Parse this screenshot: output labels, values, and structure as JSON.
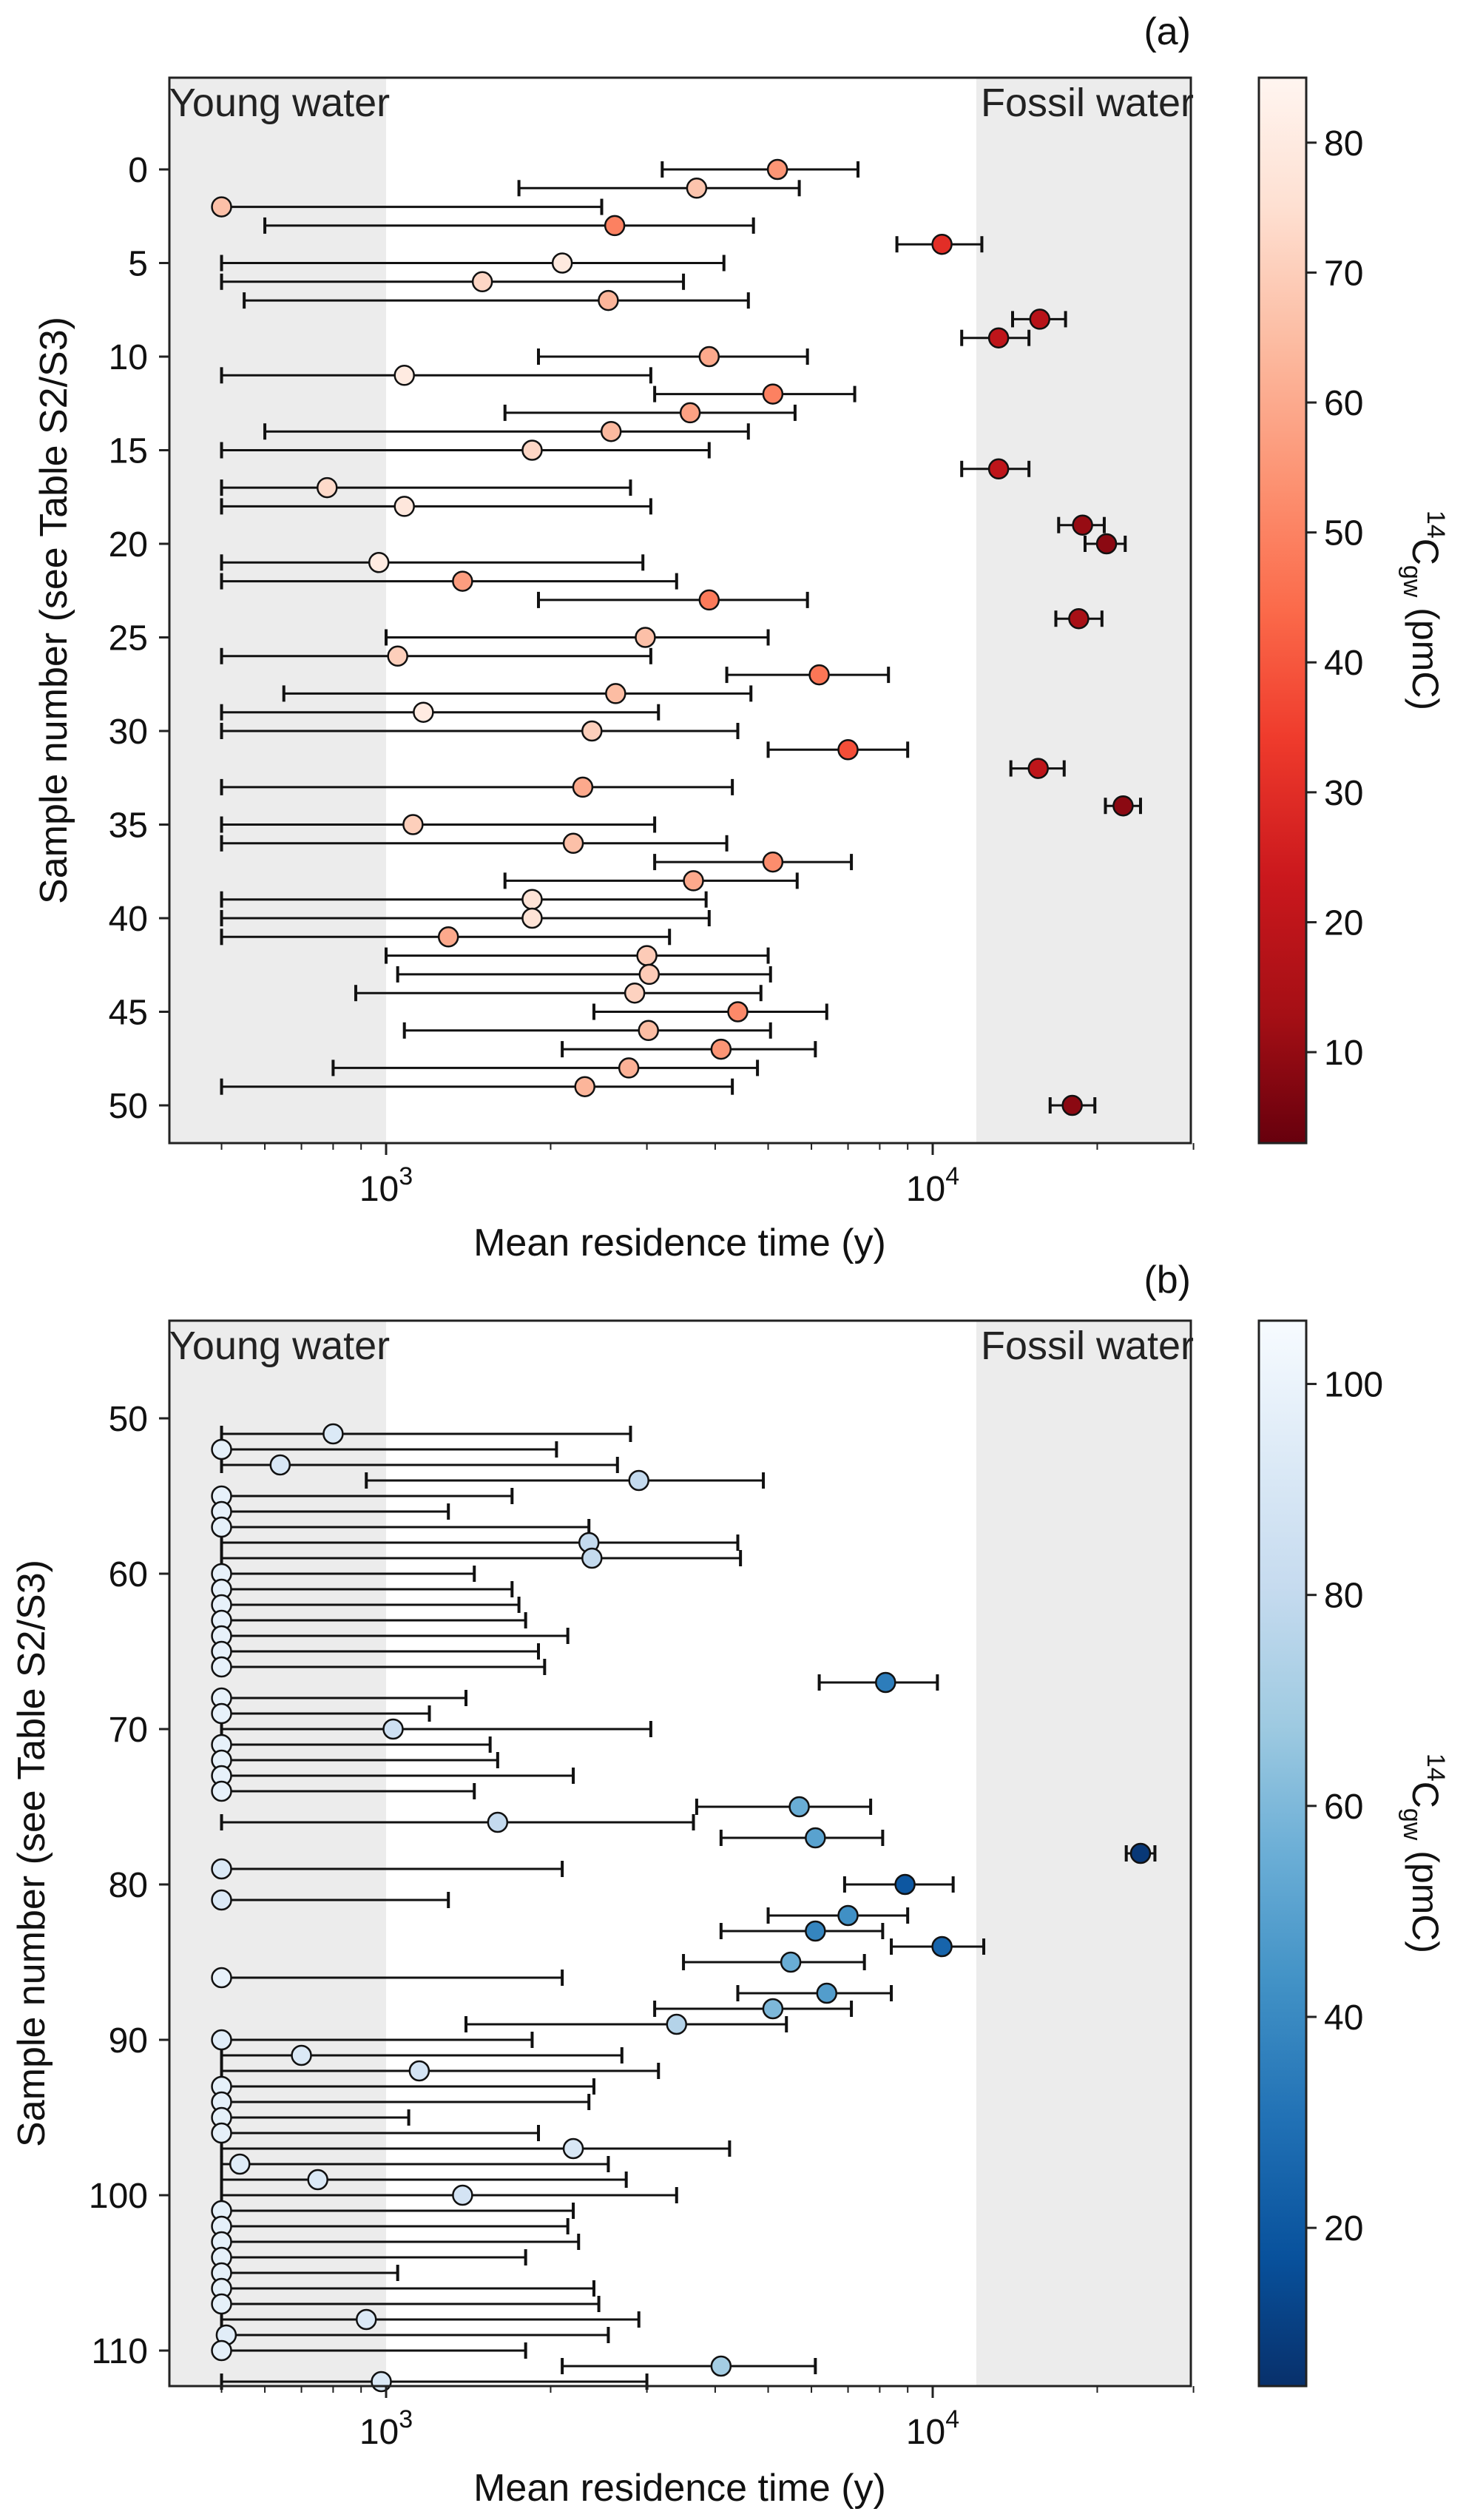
{
  "chart_data": [
    {
      "type": "scatter",
      "panel_label": "(a)",
      "xlabel": "Mean residence time (y)",
      "ylabel": "Sample number (see Table S2/S3)",
      "x_scale": "log",
      "x_tick_labels": [
        "10^3",
        "10^4"
      ],
      "y_ticks": [
        0,
        5,
        10,
        15,
        20,
        25,
        30,
        35,
        40,
        45,
        50
      ],
      "regions": [
        {
          "label": "Young water",
          "x_range": [
            410,
            1000
          ],
          "color": "#ececec"
        },
        {
          "label": "Fossil water",
          "x_range": [
            12000,
            30000
          ],
          "color": "#ececec"
        }
      ],
      "colorbar": {
        "label": "14C_gw (pmC)",
        "colormap": "Reds_r",
        "range": [
          3,
          85
        ],
        "ticks": [
          10,
          20,
          30,
          40,
          50,
          60,
          70,
          80
        ]
      },
      "points": [
        {
          "sample": 0,
          "x": 5200,
          "x_err": [
            3200,
            7300
          ],
          "c14": 55
        },
        {
          "sample": 1,
          "x": 3700,
          "x_err": [
            1750,
            5700
          ],
          "c14": 67
        },
        {
          "sample": 2,
          "x": 500,
          "x_err": [
            500,
            2480
          ],
          "c14": 66
        },
        {
          "sample": 3,
          "x": 2620,
          "x_err": [
            600,
            4700
          ],
          "c14": 50
        },
        {
          "sample": 4,
          "x": 10400,
          "x_err": [
            8600,
            12300
          ],
          "c14": 30
        },
        {
          "sample": 5,
          "x": 2100,
          "x_err": [
            500,
            4150
          ],
          "c14": 79
        },
        {
          "sample": 6,
          "x": 1500,
          "x_err": [
            500,
            3500
          ],
          "c14": 72
        },
        {
          "sample": 7,
          "x": 2550,
          "x_err": [
            550,
            4600
          ],
          "c14": 63
        },
        {
          "sample": 8,
          "x": 15700,
          "x_err": [
            14000,
            17500
          ],
          "c14": 18
        },
        {
          "sample": 9,
          "x": 13200,
          "x_err": [
            11300,
            15000
          ],
          "c14": 20
        },
        {
          "sample": 10,
          "x": 3900,
          "x_err": [
            1900,
            5900
          ],
          "c14": 60
        },
        {
          "sample": 11,
          "x": 1080,
          "x_err": [
            500,
            3050
          ],
          "c14": 80
        },
        {
          "sample": 12,
          "x": 5100,
          "x_err": [
            3100,
            7200
          ],
          "c14": 50
        },
        {
          "sample": 13,
          "x": 3600,
          "x_err": [
            1650,
            5600
          ],
          "c14": 58
        },
        {
          "sample": 14,
          "x": 2580,
          "x_err": [
            600,
            4600
          ],
          "c14": 64
        },
        {
          "sample": 15,
          "x": 1850,
          "x_err": [
            500,
            3900
          ],
          "c14": 72
        },
        {
          "sample": 16,
          "x": 13200,
          "x_err": [
            11300,
            15000
          ],
          "c14": 20
        },
        {
          "sample": 17,
          "x": 780,
          "x_err": [
            500,
            2800
          ],
          "c14": 73
        },
        {
          "sample": 18,
          "x": 1080,
          "x_err": [
            500,
            3050
          ],
          "c14": 78
        },
        {
          "sample": 19,
          "x": 18800,
          "x_err": [
            17000,
            20600
          ],
          "c14": 11
        },
        {
          "sample": 20,
          "x": 20800,
          "x_err": [
            19000,
            22500
          ],
          "c14": 9
        },
        {
          "sample": 21,
          "x": 970,
          "x_err": [
            500,
            2950
          ],
          "c14": 80
        },
        {
          "sample": 22,
          "x": 1380,
          "x_err": [
            500,
            3400
          ],
          "c14": 57
        },
        {
          "sample": 23,
          "x": 3900,
          "x_err": [
            1900,
            5900
          ],
          "c14": 48
        },
        {
          "sample": 24,
          "x": 18500,
          "x_err": [
            16800,
            20400
          ],
          "c14": 14
        },
        {
          "sample": 25,
          "x": 2980,
          "x_err": [
            1000,
            5000
          ],
          "c14": 66
        },
        {
          "sample": 26,
          "x": 1050,
          "x_err": [
            500,
            3050
          ],
          "c14": 70
        },
        {
          "sample": 27,
          "x": 6200,
          "x_err": [
            4200,
            8300
          ],
          "c14": 47
        },
        {
          "sample": 28,
          "x": 2630,
          "x_err": [
            650,
            4650
          ],
          "c14": 65
        },
        {
          "sample": 29,
          "x": 1170,
          "x_err": [
            500,
            3150
          ],
          "c14": 80
        },
        {
          "sample": 30,
          "x": 2380,
          "x_err": [
            500,
            4400
          ],
          "c14": 70
        },
        {
          "sample": 31,
          "x": 7000,
          "x_err": [
            5000,
            9000
          ],
          "c14": 38
        },
        {
          "sample": 32,
          "x": 15600,
          "x_err": [
            13900,
            17400
          ],
          "c14": 20
        },
        {
          "sample": 33,
          "x": 2290,
          "x_err": [
            500,
            4300
          ],
          "c14": 60
        },
        {
          "sample": 34,
          "x": 22300,
          "x_err": [
            20700,
            24000
          ],
          "c14": 9
        },
        {
          "sample": 35,
          "x": 1120,
          "x_err": [
            500,
            3100
          ],
          "c14": 70
        },
        {
          "sample": 36,
          "x": 2200,
          "x_err": [
            500,
            4200
          ],
          "c14": 66
        },
        {
          "sample": 37,
          "x": 5100,
          "x_err": [
            3100,
            7100
          ],
          "c14": 53
        },
        {
          "sample": 38,
          "x": 3650,
          "x_err": [
            1650,
            5650
          ],
          "c14": 60
        },
        {
          "sample": 39,
          "x": 1850,
          "x_err": [
            500,
            3850
          ],
          "c14": 76
        },
        {
          "sample": 40,
          "x": 1850,
          "x_err": [
            500,
            3900
          ],
          "c14": 76
        },
        {
          "sample": 41,
          "x": 1300,
          "x_err": [
            500,
            3300
          ],
          "c14": 60
        },
        {
          "sample": 42,
          "x": 3000,
          "x_err": [
            1000,
            5000
          ],
          "c14": 69
        },
        {
          "sample": 43,
          "x": 3030,
          "x_err": [
            1050,
            5050
          ],
          "c14": 69
        },
        {
          "sample": 44,
          "x": 2850,
          "x_err": [
            880,
            4850
          ],
          "c14": 71
        },
        {
          "sample": 45,
          "x": 4400,
          "x_err": [
            2400,
            6400
          ],
          "c14": 52
        },
        {
          "sample": 46,
          "x": 3020,
          "x_err": [
            1080,
            5050
          ],
          "c14": 65
        },
        {
          "sample": 47,
          "x": 4100,
          "x_err": [
            2100,
            6100
          ],
          "c14": 55
        },
        {
          "sample": 48,
          "x": 2780,
          "x_err": [
            800,
            4780
          ],
          "c14": 62
        },
        {
          "sample": 49,
          "x": 2310,
          "x_err": [
            500,
            4300
          ],
          "c14": 63
        },
        {
          "sample": 50,
          "x": 18000,
          "x_err": [
            16400,
            19800
          ],
          "c14": 9
        }
      ]
    },
    {
      "type": "scatter",
      "panel_label": "(b)",
      "xlabel": "Mean residence time (y)",
      "ylabel": "Sample number (see Table S2/S3)",
      "x_scale": "log",
      "x_tick_labels": [
        "10^3",
        "10^4"
      ],
      "y_ticks": [
        50,
        60,
        70,
        80,
        90,
        100,
        110
      ],
      "regions": [
        {
          "label": "Young water",
          "x_range": [
            410,
            1000
          ],
          "color": "#ececec"
        },
        {
          "label": "Fossil water",
          "x_range": [
            12000,
            30000
          ],
          "color": "#ececec"
        }
      ],
      "colorbar": {
        "label": "14C_gw (pmC)",
        "colormap": "Blues_r",
        "range": [
          5,
          106
        ],
        "ticks": [
          20,
          40,
          60,
          80,
          100
        ]
      },
      "points": [
        {
          "sample": 51,
          "x": 800,
          "x_err": [
            500,
            2800
          ],
          "c14": 92
        },
        {
          "sample": 52,
          "x": 500,
          "x_err": [
            500,
            2050
          ],
          "c14": 97
        },
        {
          "sample": 53,
          "x": 640,
          "x_err": [
            500,
            2650
          ],
          "c14": 90
        },
        {
          "sample": 54,
          "x": 2900,
          "x_err": [
            920,
            4900
          ],
          "c14": 80
        },
        {
          "sample": 55,
          "x": 500,
          "x_err": [
            500,
            1700
          ],
          "c14": 98
        },
        {
          "sample": 56,
          "x": 500,
          "x_err": [
            500,
            1300
          ],
          "c14": 98
        },
        {
          "sample": 57,
          "x": 500,
          "x_err": [
            500,
            2350
          ],
          "c14": 97
        },
        {
          "sample": 58,
          "x": 2350,
          "x_err": [
            500,
            4400
          ],
          "c14": 80
        },
        {
          "sample": 59,
          "x": 2380,
          "x_err": [
            500,
            4450
          ],
          "c14": 80
        },
        {
          "sample": 60,
          "x": 500,
          "x_err": [
            500,
            1450
          ],
          "c14": 98
        },
        {
          "sample": 61,
          "x": 500,
          "x_err": [
            500,
            1700
          ],
          "c14": 98
        },
        {
          "sample": 62,
          "x": 500,
          "x_err": [
            500,
            1750
          ],
          "c14": 98
        },
        {
          "sample": 63,
          "x": 500,
          "x_err": [
            500,
            1800
          ],
          "c14": 98
        },
        {
          "sample": 64,
          "x": 500,
          "x_err": [
            500,
            2150
          ],
          "c14": 98
        },
        {
          "sample": 65,
          "x": 500,
          "x_err": [
            500,
            1900
          ],
          "c14": 98
        },
        {
          "sample": 66,
          "x": 500,
          "x_err": [
            500,
            1950
          ],
          "c14": 98
        },
        {
          "sample": 67,
          "x": 8200,
          "x_err": [
            6200,
            10200
          ],
          "c14": 35
        },
        {
          "sample": 68,
          "x": 500,
          "x_err": [
            500,
            1400
          ],
          "c14": 98
        },
        {
          "sample": 69,
          "x": 500,
          "x_err": [
            500,
            1200
          ],
          "c14": 98
        },
        {
          "sample": 70,
          "x": 1030,
          "x_err": [
            500,
            3050
          ],
          "c14": 85
        },
        {
          "sample": 71,
          "x": 500,
          "x_err": [
            500,
            1550
          ],
          "c14": 98
        },
        {
          "sample": 72,
          "x": 500,
          "x_err": [
            500,
            1600
          ],
          "c14": 98
        },
        {
          "sample": 73,
          "x": 500,
          "x_err": [
            500,
            2200
          ],
          "c14": 98
        },
        {
          "sample": 74,
          "x": 500,
          "x_err": [
            500,
            1450
          ],
          "c14": 98
        },
        {
          "sample": 75,
          "x": 5700,
          "x_err": [
            3700,
            7700
          ],
          "c14": 55
        },
        {
          "sample": 76,
          "x": 1600,
          "x_err": [
            500,
            3650
          ],
          "c14": 80
        },
        {
          "sample": 77,
          "x": 6100,
          "x_err": [
            4100,
            8100
          ],
          "c14": 50
        },
        {
          "sample": 78,
          "x": 24000,
          "x_err": [
            22600,
            25500
          ],
          "c14": 8
        },
        {
          "sample": 79,
          "x": 500,
          "x_err": [
            500,
            2100
          ],
          "c14": 92
        },
        {
          "sample": 80,
          "x": 8900,
          "x_err": [
            6900,
            10900
          ],
          "c14": 20
        },
        {
          "sample": 81,
          "x": 500,
          "x_err": [
            500,
            1300
          ],
          "c14": 92
        },
        {
          "sample": 82,
          "x": 7000,
          "x_err": [
            5000,
            9000
          ],
          "c14": 42
        },
        {
          "sample": 83,
          "x": 6100,
          "x_err": [
            4100,
            8100
          ],
          "c14": 38
        },
        {
          "sample": 84,
          "x": 10400,
          "x_err": [
            8400,
            12400
          ],
          "c14": 25
        },
        {
          "sample": 85,
          "x": 5500,
          "x_err": [
            3500,
            7500
          ],
          "c14": 55
        },
        {
          "sample": 86,
          "x": 500,
          "x_err": [
            500,
            2100
          ],
          "c14": 98
        },
        {
          "sample": 87,
          "x": 6400,
          "x_err": [
            4400,
            8400
          ],
          "c14": 48
        },
        {
          "sample": 88,
          "x": 5100,
          "x_err": [
            3100,
            7100
          ],
          "c14": 60
        },
        {
          "sample": 89,
          "x": 3400,
          "x_err": [
            1400,
            5400
          ],
          "c14": 75
        },
        {
          "sample": 90,
          "x": 500,
          "x_err": [
            500,
            1850
          ],
          "c14": 95
        },
        {
          "sample": 91,
          "x": 700,
          "x_err": [
            500,
            2700
          ],
          "c14": 92
        },
        {
          "sample": 92,
          "x": 1150,
          "x_err": [
            500,
            3150
          ],
          "c14": 88
        },
        {
          "sample": 93,
          "x": 500,
          "x_err": [
            500,
            2400
          ],
          "c14": 97
        },
        {
          "sample": 94,
          "x": 500,
          "x_err": [
            500,
            2350
          ],
          "c14": 97
        },
        {
          "sample": 95,
          "x": 500,
          "x_err": [
            500,
            1100
          ],
          "c14": 97
        },
        {
          "sample": 96,
          "x": 500,
          "x_err": [
            500,
            1900
          ],
          "c14": 97
        },
        {
          "sample": 97,
          "x": 2200,
          "x_err": [
            500,
            4250
          ],
          "c14": 90
        },
        {
          "sample": 98,
          "x": 540,
          "x_err": [
            500,
            2550
          ],
          "c14": 94
        },
        {
          "sample": 99,
          "x": 750,
          "x_err": [
            500,
            2750
          ],
          "c14": 92
        },
        {
          "sample": 100,
          "x": 1380,
          "x_err": [
            500,
            3400
          ],
          "c14": 88
        },
        {
          "sample": 101,
          "x": 500,
          "x_err": [
            500,
            2200
          ],
          "c14": 97
        },
        {
          "sample": 102,
          "x": 500,
          "x_err": [
            500,
            2150
          ],
          "c14": 97
        },
        {
          "sample": 103,
          "x": 500,
          "x_err": [
            500,
            2250
          ],
          "c14": 97
        },
        {
          "sample": 104,
          "x": 500,
          "x_err": [
            500,
            1800
          ],
          "c14": 97
        },
        {
          "sample": 105,
          "x": 500,
          "x_err": [
            500,
            1050
          ],
          "c14": 97
        },
        {
          "sample": 106,
          "x": 500,
          "x_err": [
            500,
            2400
          ],
          "c14": 97
        },
        {
          "sample": 107,
          "x": 500,
          "x_err": [
            500,
            2450
          ],
          "c14": 97
        },
        {
          "sample": 108,
          "x": 920,
          "x_err": [
            500,
            2900
          ],
          "c14": 92
        },
        {
          "sample": 109,
          "x": 510,
          "x_err": [
            500,
            2550
          ],
          "c14": 95
        },
        {
          "sample": 110,
          "x": 500,
          "x_err": [
            500,
            1800
          ],
          "c14": 97
        },
        {
          "sample": 111,
          "x": 4100,
          "x_err": [
            2100,
            6100
          ],
          "c14": 70
        },
        {
          "sample": 112,
          "x": 980,
          "x_err": [
            500,
            3000
          ],
          "c14": 92
        }
      ]
    }
  ]
}
